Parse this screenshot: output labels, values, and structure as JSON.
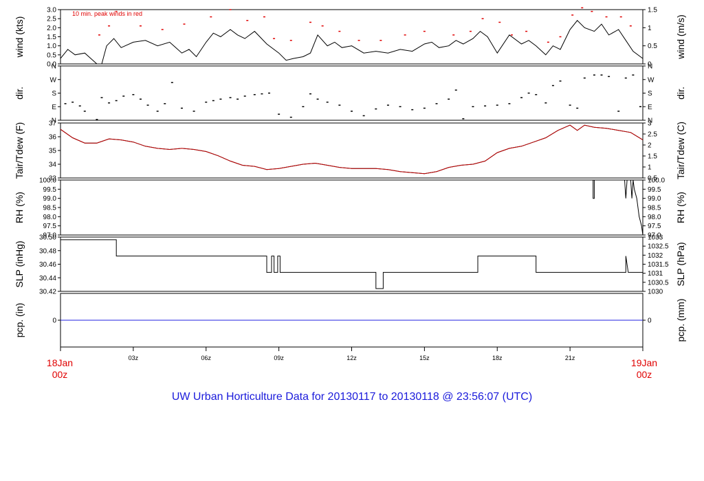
{
  "chart_data": {
    "type": "line",
    "title": "UW Urban Horticulture Data for 20130117  to  20130118 @ 23:56:07  (UTC)",
    "x_start_label": [
      "18Jan",
      "00z"
    ],
    "x_end_label": [
      "19Jan",
      "00z"
    ],
    "x_ticks": [
      "03z",
      "06z",
      "09z",
      "12z",
      "15z",
      "18z",
      "21z"
    ],
    "x_range_hours": [
      0,
      24
    ],
    "panels": [
      {
        "id": "wind",
        "ylabel_left": "wind (kts)",
        "ylabel_right": "wind (m/s)",
        "annotation": "10 min. peak winds in red",
        "ylim": [
          0,
          3.0
        ],
        "left_ticks": [
          "0.0",
          "0.5",
          "1.0",
          "1.5",
          "2.0",
          "2.5",
          "3.0"
        ],
        "right_ticks": [
          "0",
          "0.5",
          "1",
          "1.5"
        ],
        "series": [
          {
            "color": "#000000",
            "x": [
              0,
              0.3,
              0.6,
              1.0,
              1.5,
              1.7,
              1.9,
              2.2,
              2.5,
              3.0,
              3.5,
              4.0,
              4.5,
              5.0,
              5.3,
              5.6,
              6.0,
              6.3,
              6.6,
              7.0,
              7.3,
              7.6,
              8.0,
              8.5,
              9.0,
              9.3,
              9.6,
              10.0,
              10.3,
              10.6,
              11.0,
              11.3,
              11.6,
              12.0,
              12.5,
              13.0,
              13.5,
              14.0,
              14.5,
              15.0,
              15.3,
              15.6,
              16.0,
              16.3,
              16.6,
              17.0,
              17.3,
              17.6,
              18.0,
              18.5,
              19.0,
              19.3,
              19.6,
              20.0,
              20.3,
              20.6,
              21.0,
              21.3,
              21.6,
              22.0,
              22.3,
              22.6,
              23.0,
              23.3,
              23.6,
              24.0
            ],
            "y": [
              0.3,
              0.8,
              0.5,
              0.6,
              0,
              0,
              1.0,
              1.4,
              0.9,
              1.2,
              1.3,
              1.0,
              1.2,
              0.6,
              0.8,
              0.4,
              1.2,
              1.7,
              1.5,
              1.9,
              1.6,
              1.4,
              1.8,
              1.1,
              0.6,
              0.2,
              0.3,
              0.4,
              0.6,
              1.6,
              1.0,
              1.2,
              0.9,
              1.0,
              0.6,
              0.7,
              0.6,
              0.8,
              0.7,
              1.1,
              1.2,
              0.9,
              1.0,
              1.3,
              1.1,
              1.4,
              1.8,
              1.5,
              0.6,
              1.6,
              1.1,
              1.3,
              1.0,
              0.5,
              1.0,
              0.8,
              1.9,
              2.4,
              2.0,
              1.8,
              2.2,
              1.6,
              1.9,
              1.3,
              0.7,
              0.3
            ]
          },
          {
            "color": "#e00000",
            "x": [
              1.6,
              2.0,
              2.3,
              3.3,
              4.2,
              5.1,
              6.2,
              7.0,
              7.7,
              8.4,
              8.8,
              9.5,
              10.3,
              10.8,
              11.5,
              12.3,
              13.2,
              14.2,
              15.0,
              16.2,
              16.9,
              17.4,
              18.1,
              18.6,
              19.2,
              20.1,
              20.6,
              21.1,
              21.5,
              21.9,
              22.5,
              23.1,
              23.5
            ],
            "y": [
              1.6,
              2.1,
              2.9,
              2.1,
              1.9,
              2.2,
              2.6,
              3.0,
              2.4,
              2.6,
              1.4,
              1.3,
              2.3,
              2.1,
              1.8,
              1.3,
              1.3,
              1.6,
              1.8,
              1.6,
              1.8,
              2.5,
              2.3,
              1.6,
              1.8,
              1.2,
              1.5,
              2.7,
              3.1,
              2.9,
              2.6,
              2.6,
              2.1
            ]
          }
        ]
      },
      {
        "id": "dir",
        "ylabel_left": "dir.",
        "ylabel_right": "dir.",
        "ylim": [
          0,
          360
        ],
        "left_ticks": [
          "N",
          "E",
          "S",
          "W",
          "N"
        ],
        "right_ticks": [
          "N",
          "E",
          "S",
          "W",
          "N"
        ],
        "series": [
          {
            "color": "#000000",
            "x": [
              0.2,
              0.5,
              0.8,
              1.0,
              1.5,
              1.7,
              2.0,
              2.3,
              2.6,
              3.0,
              3.3,
              3.6,
              4.0,
              4.3,
              4.6,
              5.0,
              5.5,
              6.0,
              6.3,
              6.6,
              7.0,
              7.3,
              7.6,
              8.0,
              8.3,
              8.6,
              9.0,
              9.5,
              10.0,
              10.3,
              10.6,
              11.0,
              11.5,
              12.0,
              12.5,
              13.0,
              13.5,
              14.0,
              14.5,
              15.0,
              15.5,
              16.0,
              16.3,
              16.6,
              17.0,
              17.5,
              18.0,
              18.5,
              19.0,
              19.3,
              19.6,
              20.0,
              20.3,
              20.6,
              21.0,
              21.3,
              21.6,
              22.0,
              22.3,
              22.6,
              23.0,
              23.3,
              23.6,
              23.9
            ],
            "y": [
              110,
              120,
              95,
              60,
              5,
              150,
              115,
              130,
              160,
              170,
              140,
              100,
              60,
              110,
              250,
              80,
              60,
              120,
              130,
              140,
              150,
              140,
              160,
              170,
              175,
              180,
              40,
              20,
              90,
              175,
              140,
              120,
              100,
              60,
              30,
              75,
              100,
              90,
              70,
              80,
              110,
              140,
              200,
              10,
              90,
              95,
              100,
              110,
              150,
              180,
              170,
              115,
              230,
              260,
              100,
              80,
              280,
              300,
              300,
              290,
              60,
              280,
              300,
              90
            ]
          }
        ]
      },
      {
        "id": "temp",
        "ylabel_left": "Tair/Tdew (F)",
        "ylabel_right": "Tair/Tdew (C)",
        "ylim": [
          32.4,
          37.6
        ],
        "left_ticks": [
          "33",
          "34",
          "35",
          "36",
          "37"
        ],
        "right_ticks": [
          "0.5",
          "1",
          "1.5",
          "2",
          "2.5",
          "3"
        ],
        "series": [
          {
            "color": "#000000",
            "x": [
              0,
              0.5,
              1.0,
              1.5,
              2.0,
              2.5,
              3.0,
              3.5,
              4.0,
              4.5,
              5.0,
              5.5,
              6.0,
              6.5,
              7.0,
              7.5,
              8.0,
              8.5,
              9.0,
              9.5,
              10.0,
              10.5,
              11.0,
              11.5,
              12.0,
              12.5,
              13.0,
              13.5,
              14.0,
              14.5,
              15.0,
              15.5,
              16.0,
              16.5,
              17.0,
              17.5,
              18.0,
              18.5,
              19.0,
              19.5,
              20.0,
              20.5,
              21.0,
              21.3,
              21.6,
              22.0,
              22.5,
              23.0,
              23.5,
              24.0
            ],
            "y": [
              37.0,
              36.2,
              35.7,
              35.7,
              36.1,
              36.0,
              35.8,
              35.4,
              35.2,
              35.1,
              35.2,
              35.1,
              34.9,
              34.5,
              34.0,
              33.6,
              33.5,
              33.2,
              33.3,
              33.5,
              33.7,
              33.8,
              33.6,
              33.4,
              33.3,
              33.3,
              33.3,
              33.2,
              33.0,
              32.9,
              32.8,
              33.0,
              33.4,
              33.6,
              33.7,
              34.0,
              34.8,
              35.2,
              35.4,
              35.8,
              36.2,
              36.9,
              37.4,
              36.9,
              37.4,
              37.2,
              37.1,
              36.9,
              36.7,
              36.0
            ]
          },
          {
            "color": "#c00000",
            "x": [
              0,
              0.5,
              1.0,
              1.5,
              2.0,
              2.5,
              3.0,
              3.5,
              4.0,
              4.5,
              5.0,
              5.5,
              6.0,
              6.5,
              7.0,
              7.5,
              8.0,
              8.5,
              9.0,
              9.5,
              10.0,
              10.5,
              11.0,
              11.5,
              12.0,
              12.5,
              13.0,
              13.5,
              14.0,
              14.5,
              15.0,
              15.5,
              16.0,
              16.5,
              17.0,
              17.5,
              18.0,
              18.5,
              19.0,
              19.5,
              20.0,
              20.5,
              21.0,
              21.3,
              21.6,
              22.0,
              22.5,
              23.0,
              23.5,
              24.0
            ],
            "y": [
              37.0,
              36.2,
              35.7,
              35.7,
              36.1,
              36.0,
              35.8,
              35.4,
              35.2,
              35.1,
              35.2,
              35.1,
              34.9,
              34.5,
              34.0,
              33.6,
              33.5,
              33.2,
              33.3,
              33.5,
              33.7,
              33.8,
              33.6,
              33.4,
              33.3,
              33.3,
              33.3,
              33.2,
              33.0,
              32.9,
              32.8,
              33.0,
              33.4,
              33.6,
              33.7,
              34.0,
              34.8,
              35.2,
              35.4,
              35.8,
              36.2,
              36.9,
              37.4,
              36.9,
              37.4,
              37.2,
              37.1,
              36.9,
              36.7,
              36.0
            ]
          }
        ]
      },
      {
        "id": "rh",
        "ylabel_left": "RH (%)",
        "ylabel_right": "RH (%)",
        "ylim": [
          97.0,
          100.0
        ],
        "left_ticks": [
          "97.0",
          "97.5",
          "98.0",
          "98.5",
          "99.0",
          "99.5",
          "100.0"
        ],
        "right_ticks": [
          "97.0",
          "97.5",
          "98.0",
          "98.5",
          "99.0",
          "99.5",
          "100.0"
        ],
        "series": [
          {
            "color": "#000000",
            "x": [
              0,
              21.95,
              21.95,
              22.0,
              22.0,
              22.15,
              22.2,
              23.25,
              23.3,
              23.35,
              23.4,
              23.5,
              23.55,
              23.6,
              23.65,
              23.75,
              23.85,
              23.95,
              24.0
            ],
            "y": [
              100.0,
              100.0,
              99.0,
              99.0,
              100.0,
              100.0,
              100.0,
              100.0,
              99.0,
              100.0,
              100.0,
              100.0,
              99.0,
              100.0,
              99.5,
              99.0,
              98.0,
              97.5,
              97.0
            ]
          }
        ]
      },
      {
        "id": "slp",
        "ylabel_left": "SLP (inHg)",
        "ylabel_right": "SLP (hPa)",
        "ylim": [
          30.415,
          30.515
        ],
        "left_ticks": [
          "30.42",
          "30.44",
          "30.46",
          "30.48",
          "30.50"
        ],
        "right_ticks": [
          "1030",
          "1030.5",
          "1031",
          "1031.5",
          "1032",
          "1032.5",
          "1033"
        ],
        "series": [
          {
            "color": "#000000",
            "x": [
              0,
              2.3,
              2.3,
              8.5,
              8.5,
              8.7,
              8.7,
              8.8,
              8.8,
              8.95,
              8.95,
              9.05,
              9.05,
              13.0,
              13.0,
              13.3,
              13.3,
              17.2,
              17.2,
              19.6,
              19.6,
              23.3,
              23.3,
              23.4,
              23.4,
              24.0
            ],
            "y": [
              30.51,
              30.51,
              30.48,
              30.48,
              30.45,
              30.45,
              30.48,
              30.48,
              30.45,
              30.45,
              30.48,
              30.48,
              30.45,
              30.45,
              30.42,
              30.42,
              30.45,
              30.45,
              30.48,
              30.48,
              30.45,
              30.45,
              30.48,
              30.45,
              30.45,
              30.45
            ]
          }
        ]
      },
      {
        "id": "pcp",
        "ylabel_left": "pcp. (in)",
        "ylabel_right": "pcp. (mm)",
        "ylim": [
          -1,
          1
        ],
        "left_ticks": [
          "0"
        ],
        "right_ticks": [
          "0"
        ],
        "series": [
          {
            "color": "#2020e0",
            "x": [
              0,
              24
            ],
            "y": [
              0,
              0
            ]
          }
        ]
      }
    ]
  }
}
